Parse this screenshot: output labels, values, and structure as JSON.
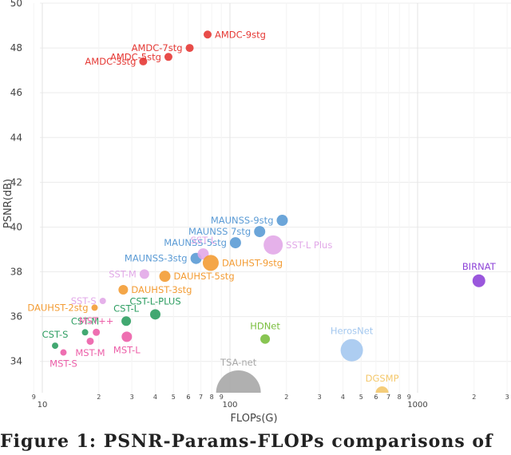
{
  "chart_data": {
    "type": "scatter",
    "xlabel": "FLOPs(G)",
    "ylabel": "PSNR(dB)",
    "xscale": "log",
    "xlim": [
      9,
      3000
    ],
    "ylim": [
      32.6,
      50
    ],
    "y_ticks": [
      34,
      36,
      38,
      40,
      42,
      44,
      46,
      48,
      50
    ],
    "x_major_ticks": [
      {
        "v": 10,
        "label": "10"
      },
      {
        "v": 100,
        "label": "100"
      },
      {
        "v": 1000,
        "label": "1000"
      }
    ],
    "x_minor_ticks": [
      {
        "v": 9,
        "label": "9"
      },
      {
        "v": 20,
        "label": "2"
      },
      {
        "v": 30,
        "label": "3"
      },
      {
        "v": 40,
        "label": "4"
      },
      {
        "v": 50,
        "label": "5"
      },
      {
        "v": 60,
        "label": "6"
      },
      {
        "v": 70,
        "label": "7"
      },
      {
        "v": 80,
        "label": "8"
      },
      {
        "v": 90,
        "label": "9"
      },
      {
        "v": 200,
        "label": "2"
      },
      {
        "v": 300,
        "label": "3"
      },
      {
        "v": 400,
        "label": "4"
      },
      {
        "v": 500,
        "label": "5"
      },
      {
        "v": 600,
        "label": "6"
      },
      {
        "v": 700,
        "label": "7"
      },
      {
        "v": 800,
        "label": "8"
      },
      {
        "v": 900,
        "label": "9"
      },
      {
        "v": 2000,
        "label": "2"
      },
      {
        "v": 3000,
        "label": "3"
      }
    ],
    "points": [
      {
        "name": "AMDC-3stg",
        "x": 34.5,
        "y": 47.4,
        "size": 5,
        "color": "#e53935",
        "label_pos": "left"
      },
      {
        "name": "AMDC-5stg",
        "x": 47,
        "y": 47.6,
        "size": 5,
        "color": "#e53935",
        "label_pos": "left"
      },
      {
        "name": "AMDC-7stg",
        "x": 61,
        "y": 48.0,
        "size": 5,
        "color": "#e53935",
        "label_pos": "left"
      },
      {
        "name": "AMDC-9stg",
        "x": 76,
        "y": 48.6,
        "size": 5,
        "color": "#e53935",
        "label_pos": "right"
      },
      {
        "name": "MAUNSS-3stg",
        "x": 66,
        "y": 38.6,
        "size": 7,
        "color": "#5b9bd5",
        "label_pos": "left"
      },
      {
        "name": "MAUNSS-5stg",
        "x": 107,
        "y": 39.3,
        "size": 7,
        "color": "#5b9bd5",
        "label_pos": "left"
      },
      {
        "name": "MAUNSS 7stg",
        "x": 144,
        "y": 39.8,
        "size": 7,
        "color": "#5b9bd5",
        "label_pos": "left"
      },
      {
        "name": "MAUNSS-9stg",
        "x": 190,
        "y": 40.3,
        "size": 7,
        "color": "#5b9bd5",
        "label_pos": "left"
      },
      {
        "name": "SST-S",
        "x": 21,
        "y": 36.7,
        "size": 4,
        "color": "#e2a9e8",
        "label_pos": "left"
      },
      {
        "name": "SST-M",
        "x": 35,
        "y": 37.9,
        "size": 6,
        "color": "#e2a9e8",
        "label_pos": "left"
      },
      {
        "name": "SST L",
        "x": 72,
        "y": 38.8,
        "size": 7,
        "color": "#e2a9e8",
        "label_pos": "top"
      },
      {
        "name": "SST-L Plus",
        "x": 170,
        "y": 39.2,
        "size": 12,
        "color": "#e2a9e8",
        "label_pos": "right"
      },
      {
        "name": "DAUHST-2stg",
        "x": 19,
        "y": 36.4,
        "size": 4,
        "color": "#f39c34",
        "label_pos": "left"
      },
      {
        "name": "DAUHST-3stg",
        "x": 27,
        "y": 37.2,
        "size": 6,
        "color": "#f39c34",
        "label_pos": "right"
      },
      {
        "name": "DAUHST-5stg",
        "x": 45,
        "y": 37.8,
        "size": 7,
        "color": "#f39c34",
        "label_pos": "right"
      },
      {
        "name": "DAUHST-9stg",
        "x": 79,
        "y": 38.4,
        "size": 10,
        "color": "#f39c34",
        "label_pos": "right"
      },
      {
        "name": "CST-S",
        "x": 11.7,
        "y": 34.7,
        "size": 4,
        "color": "#2e9e62",
        "label_pos": "top"
      },
      {
        "name": "CST-M",
        "x": 16.9,
        "y": 35.3,
        "size": 4,
        "color": "#2e9e62",
        "label_pos": "top"
      },
      {
        "name": "CST-L",
        "x": 28,
        "y": 35.8,
        "size": 6,
        "color": "#2e9e62",
        "label_pos": "top"
      },
      {
        "name": "CST-L-PLUS",
        "x": 40,
        "y": 36.1,
        "size": 6.5,
        "color": "#2e9e62",
        "label_pos": "top"
      },
      {
        "name": "MST-S",
        "x": 12.96,
        "y": 34.4,
        "size": 4,
        "color": "#ec5fa8",
        "label_pos": "bottom"
      },
      {
        "name": "MST-M",
        "x": 18,
        "y": 34.9,
        "size": 4.5,
        "color": "#ec5fa8",
        "label_pos": "bottom"
      },
      {
        "name": "MST++",
        "x": 19.4,
        "y": 35.3,
        "size": 4.5,
        "color": "#ec5fa8",
        "label_pos": "top"
      },
      {
        "name": "MST-L",
        "x": 28.2,
        "y": 35.1,
        "size": 6.5,
        "color": "#ec5fa8",
        "label_pos": "bottom"
      },
      {
        "name": "BIRNAT",
        "x": 2122,
        "y": 37.6,
        "size": 8,
        "color": "#8f45d8",
        "label_pos": "top"
      },
      {
        "name": "HDNet",
        "x": 154,
        "y": 35.0,
        "size": 6,
        "color": "#7bbf3f",
        "label_pos": "top"
      },
      {
        "name": "HerosNet",
        "x": 446,
        "y": 34.5,
        "size": 14,
        "color": "#a4c8ef",
        "label_pos": "top"
      },
      {
        "name": "TSA-net",
        "x": 111,
        "y": 32.6,
        "size": 28,
        "color": "#a7a7a7",
        "label_pos": "top"
      },
      {
        "name": "DGSMP",
        "x": 647,
        "y": 32.6,
        "size": 8,
        "color": "#f4c86b",
        "label_pos": "top"
      }
    ]
  },
  "caption": "Figure 1:  PSNR-Params-FLOPs comparisons of"
}
